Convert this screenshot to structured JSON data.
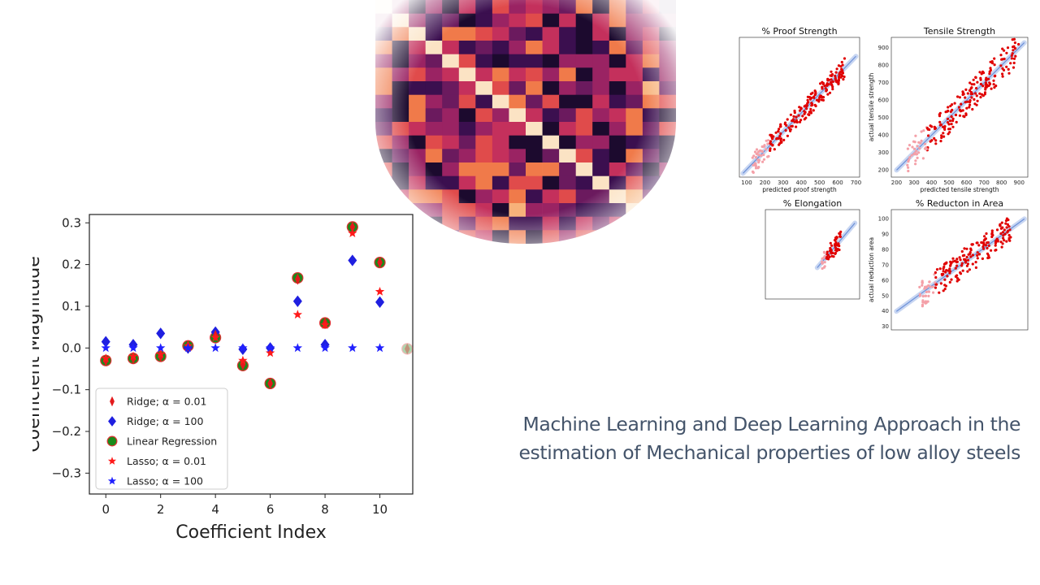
{
  "slide_title": "Machine Learning and Deep Learning Approach in the estimation of Mechanical properties of low alloy steels",
  "colors": {
    "title_text": "#44546a",
    "ridge_001": "#e31a1c",
    "ridge_100": "#1f1fe0",
    "linear": "#1a8a1a",
    "lasso_001": "#ff1a1a",
    "lasso_100": "#2020ff",
    "scatter_point": "#e00000",
    "fit_line": "#6a8fd8"
  },
  "chart_data": [
    {
      "type": "scatter",
      "id": "coefficient-chart",
      "xlabel": "Coefficient Index",
      "ylabel": "Coefficient Magnitude",
      "xlim": [
        -0.6,
        11.2
      ],
      "ylim": [
        -0.35,
        0.32
      ],
      "xticks": [
        0,
        2,
        4,
        6,
        8,
        10
      ],
      "yticks": [
        0.3,
        0.2,
        0.1,
        0.0,
        -0.1,
        -0.2,
        -0.3
      ],
      "ytick_labels": [
        "0.3",
        "0.2",
        "0.1",
        "0.0",
        "−0.1",
        "−0.2",
        "−0.3"
      ],
      "legend_position": "lower-left",
      "series": [
        {
          "name": "Ridge; α = 0.01",
          "marker": "thin_diamond",
          "color": "#e31a1c",
          "x": [
            0,
            1,
            2,
            3,
            4,
            5,
            6,
            7,
            8,
            9,
            10,
            11
          ],
          "y": [
            -0.03,
            -0.025,
            -0.02,
            0.005,
            0.03,
            -0.04,
            -0.085,
            0.165,
            0.06,
            0.29,
            0.205,
            -0.002
          ]
        },
        {
          "name": "Ridge; α = 100",
          "marker": "diamond",
          "color": "#1f1fe0",
          "x": [
            0,
            1,
            2,
            3,
            4,
            5,
            6,
            7,
            8,
            9,
            10
          ],
          "y": [
            0.015,
            0.008,
            0.035,
            0.0,
            0.038,
            -0.003,
            0.0,
            0.112,
            0.008,
            0.21,
            0.11
          ]
        },
        {
          "name": "Linear Regression",
          "marker": "circle",
          "color": "#1a8a1a",
          "x": [
            0,
            1,
            2,
            3,
            4,
            5,
            6,
            7,
            8,
            9,
            10,
            11
          ],
          "y": [
            -0.03,
            -0.025,
            -0.02,
            0.005,
            0.025,
            -0.042,
            -0.085,
            0.168,
            0.06,
            0.29,
            0.205,
            -0.002
          ]
        },
        {
          "name": "Lasso; α = 0.01",
          "marker": "star",
          "color": "#ff1a1a",
          "x": [
            0,
            1,
            2,
            3,
            4,
            5,
            6,
            7,
            8,
            9,
            10
          ],
          "y": [
            -0.025,
            -0.02,
            -0.015,
            0.005,
            0.025,
            -0.03,
            -0.012,
            0.08,
            0.055,
            0.275,
            0.135
          ]
        },
        {
          "name": "Lasso; α = 100",
          "marker": "star",
          "color": "#2020ff",
          "x": [
            0,
            1,
            2,
            3,
            4,
            5,
            6,
            7,
            8,
            9,
            10
          ],
          "y": [
            0.0,
            0.0,
            0.0,
            0.0,
            0.0,
            0.0,
            0.0,
            0.0,
            0.0,
            0.0,
            0.0
          ]
        }
      ]
    },
    {
      "type": "scatter",
      "id": "proof-strength",
      "title": "% Proof Strength",
      "xlabel": "predicted proof strength",
      "ylabel": "",
      "xlim": [
        60,
        720
      ],
      "ylim": [
        60,
        800
      ],
      "xticks": [
        100,
        200,
        300,
        400,
        500,
        600,
        700
      ],
      "fit_line": [
        [
          80,
          80
        ],
        [
          700,
          700
        ]
      ],
      "point_count": 220,
      "seed": 11,
      "spread": 55,
      "x_range": [
        130,
        640
      ]
    },
    {
      "type": "scatter",
      "id": "tensile-strength",
      "title": "Tensile Strength",
      "xlabel": "predicted tensile strength",
      "ylabel": "actual tensile strength",
      "xlim": [
        170,
        950
      ],
      "ylim": [
        160,
        960
      ],
      "xticks": [
        200,
        300,
        400,
        500,
        600,
        700,
        800,
        900
      ],
      "yticks": [
        200,
        300,
        400,
        500,
        600,
        700,
        800,
        900
      ],
      "fit_line": [
        [
          200,
          200
        ],
        [
          930,
          930
        ]
      ],
      "point_count": 220,
      "seed": 23,
      "spread": 90,
      "x_range": [
        260,
        900
      ]
    },
    {
      "type": "scatter",
      "id": "elongation",
      "title": "% Elongation",
      "xlabel": "",
      "ylabel": "",
      "xlim": [
        0,
        40
      ],
      "ylim": [
        0,
        40
      ],
      "fit_line": [
        [
          22,
          14
        ],
        [
          38,
          34
        ]
      ],
      "point_count": 60,
      "seed": 37,
      "spread": 4,
      "x_range": [
        24,
        32
      ]
    },
    {
      "type": "scatter",
      "id": "reduction-area",
      "title": "% Reducton in Area",
      "xlabel": "",
      "ylabel": "actual reduction area",
      "xlim": [
        22,
        102
      ],
      "ylim": [
        28,
        106
      ],
      "yticks": [
        30,
        40,
        50,
        60,
        70,
        80,
        90,
        100
      ],
      "fit_line": [
        [
          25,
          40
        ],
        [
          100,
          100
        ]
      ],
      "point_count": 200,
      "seed": 51,
      "spread": 9,
      "x_range": [
        38,
        92
      ]
    }
  ],
  "heatmap": {
    "rows": 18,
    "cols": 18,
    "seed": 7
  }
}
